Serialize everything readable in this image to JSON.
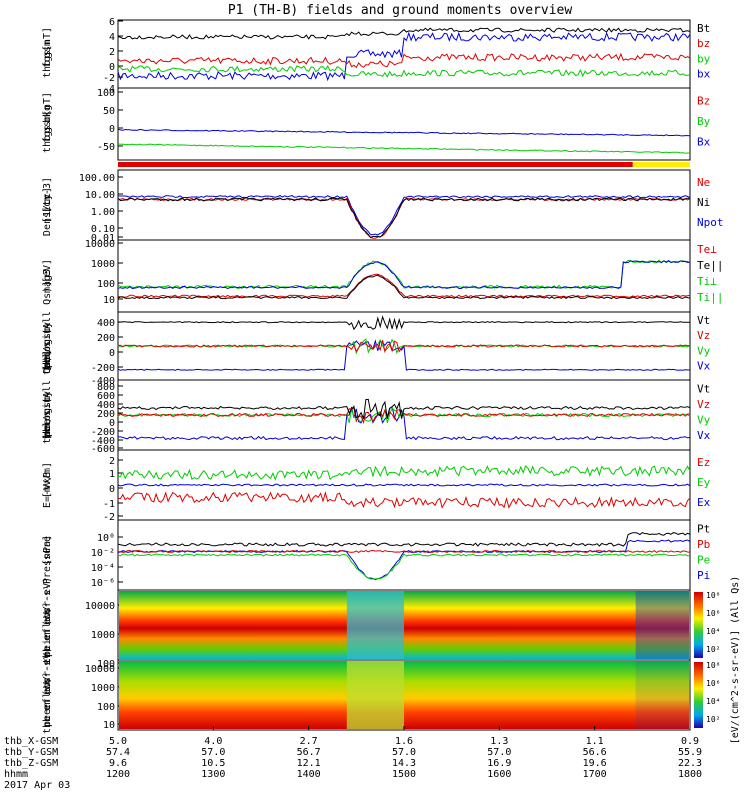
{
  "title": "P1 (TH-B) fields and ground moments overview",
  "panels": [
    {
      "id": "p1",
      "ylabel": [
        "thb",
        "fgs",
        "gsm",
        "[nT]"
      ],
      "ticks": [
        "6",
        "4",
        "2",
        "0",
        "-2",
        "-4"
      ],
      "legend": [
        "Bt",
        "bz",
        "by",
        "bx"
      ],
      "legend_colors": [
        "#000000",
        "#e00000",
        "#00cc00",
        "#0000dd"
      ]
    },
    {
      "id": "p2",
      "ylabel": [
        "thb",
        "fgs",
        "gsm",
        "bkg",
        "[nT]"
      ],
      "ticks": [
        "100",
        "50",
        "0",
        "-50"
      ],
      "legend": [
        "Bz",
        "By",
        "Bx"
      ],
      "legend_colors": [
        "#e00000",
        "#00cc00",
        "#0000dd"
      ]
    },
    {
      "id": "p3",
      "ylabel": [
        "Density",
        "[1/cc]",
        "[cm-3]"
      ],
      "ticks": [
        "100.00",
        "10.00",
        "1.00",
        "0.10",
        "0.01"
      ],
      "legend": [
        "Ne",
        "Ni",
        "Npot"
      ],
      "legend_colors": [
        "#e00000",
        "#000000",
        "#0000dd"
      ]
    },
    {
      "id": "p4",
      "ylabel": [
        "mag3",
        "[eV]"
      ],
      "ticks": [
        "10000",
        "1000",
        "100",
        "10"
      ],
      "legend": [
        "Te⊥",
        "Te||",
        "Ti⊥",
        "Ti||"
      ],
      "legend_colors": [
        "#e00000",
        "#000000",
        "#00cc00",
        "#00cc00"
      ]
    },
    {
      "id": "p5",
      "ylabel": [
        "thb",
        "peir",
        "velocity",
        "gsm",
        "[km/s (All Qs)]"
      ],
      "ticks": [
        "400",
        "200",
        "0",
        "-200",
        "-400"
      ],
      "legend": [
        "Vt",
        "Vz",
        "Vy",
        "Vx"
      ],
      "legend_colors": [
        "#000000",
        "#e00000",
        "#00cc00",
        "#0000dd"
      ]
    },
    {
      "id": "p6",
      "ylabel": [
        "thb",
        "peer",
        "velocity",
        "gsm",
        "[km/s (All Qs)]"
      ],
      "ticks": [
        "800",
        "600",
        "400",
        "200",
        "0",
        "-200",
        "-400",
        "-600"
      ],
      "legend": [
        "Vt",
        "Vz",
        "Vy",
        "Vx"
      ],
      "legend_colors": [
        "#000000",
        "#e00000",
        "#00cc00",
        "#0000dd"
      ]
    },
    {
      "id": "p7",
      "ylabel": [
        "E=-VxB",
        "[mV/m]"
      ],
      "ticks": [
        "2",
        "1",
        "0",
        "-1",
        "-2"
      ],
      "legend": [
        "Ez",
        "Ey",
        "Ex"
      ],
      "legend_colors": [
        "#e00000",
        "#00cc00",
        "#0000dd"
      ]
    },
    {
      "id": "p8",
      "ylabel": [
        "Pressure",
        "[nPa]"
      ],
      "ticks": [
        "10⁰",
        "10⁻²",
        "10⁻⁴",
        "10⁻⁶"
      ],
      "legend": [
        "Pt",
        "Pb",
        "Pe",
        "Pi"
      ],
      "legend_colors": [
        "#000000",
        "#e00000",
        "#00cc00",
        "#0000dd"
      ]
    },
    {
      "id": "p9",
      "ylabel": [
        "thb",
        "peir",
        "en",
        "eflux",
        "eV/",
        "(cm²-s-",
        "sr-eV)"
      ],
      "ticks": [
        "10000",
        "1000",
        "100"
      ]
    },
    {
      "id": "p10",
      "ylabel": [
        "thb",
        "peer",
        "en",
        "eflux",
        "eV/",
        "(cm²-s-",
        "sr-eV)"
      ],
      "ticks": [
        "10000",
        "1000",
        "100",
        "10"
      ]
    }
  ],
  "colorbar": {
    "label": "[eV/(cm^2-s-sr-eV)] (All Qs)",
    "ticks_top": [
      "10⁸",
      "10⁶",
      "10⁴",
      "10²"
    ],
    "ticks_bottom": [
      "10⁸",
      "10⁶",
      "10⁴",
      "10²"
    ]
  },
  "xaxis": {
    "rows": [
      {
        "label": "thb_X-GSM",
        "values": [
          "5.0",
          "4.0",
          "2.7",
          "1.6",
          "1.3",
          "1.1",
          "0.9"
        ]
      },
      {
        "label": "thb_Y-GSM",
        "values": [
          "57.4",
          "57.0",
          "56.7",
          "57.0",
          "57.0",
          "56.6",
          "55.9"
        ]
      },
      {
        "label": "thb_Z-GSM",
        "values": [
          "9.6",
          "10.5",
          "12.1",
          "14.3",
          "16.9",
          "19.6",
          "22.3"
        ]
      },
      {
        "label": "hhmm",
        "values": [
          "1200",
          "1300",
          "1400",
          "1500",
          "1600",
          "1700",
          "1800"
        ]
      }
    ],
    "date": "2017 Apr 03"
  },
  "chart_data": {
    "type": "line",
    "title": "P1 (TH-B) fields and ground moments overview",
    "x": [
      "1200",
      "1300",
      "1400",
      "1500",
      "1600",
      "1700",
      "1800"
    ],
    "xlabel": "hhmm",
    "series": [
      {
        "name": "Bt",
        "values": [
          3.2,
          4.0,
          4.5,
          3.8,
          3.6,
          3.8,
          3.4
        ]
      },
      {
        "name": "bz",
        "values": [
          -0.5,
          1.5,
          1.2,
          0.5,
          0.5,
          0.3,
          -0.3
        ]
      },
      {
        "name": "by",
        "values": [
          -1.0,
          -0.5,
          -0.8,
          -2.0,
          -1.8,
          -1.5,
          -2.2
        ]
      },
      {
        "name": "bx",
        "values": [
          -2.0,
          -2.2,
          -2.5,
          2.5,
          2.5,
          3.0,
          1.5
        ]
      }
    ],
    "ylim": [
      -4,
      6
    ]
  }
}
